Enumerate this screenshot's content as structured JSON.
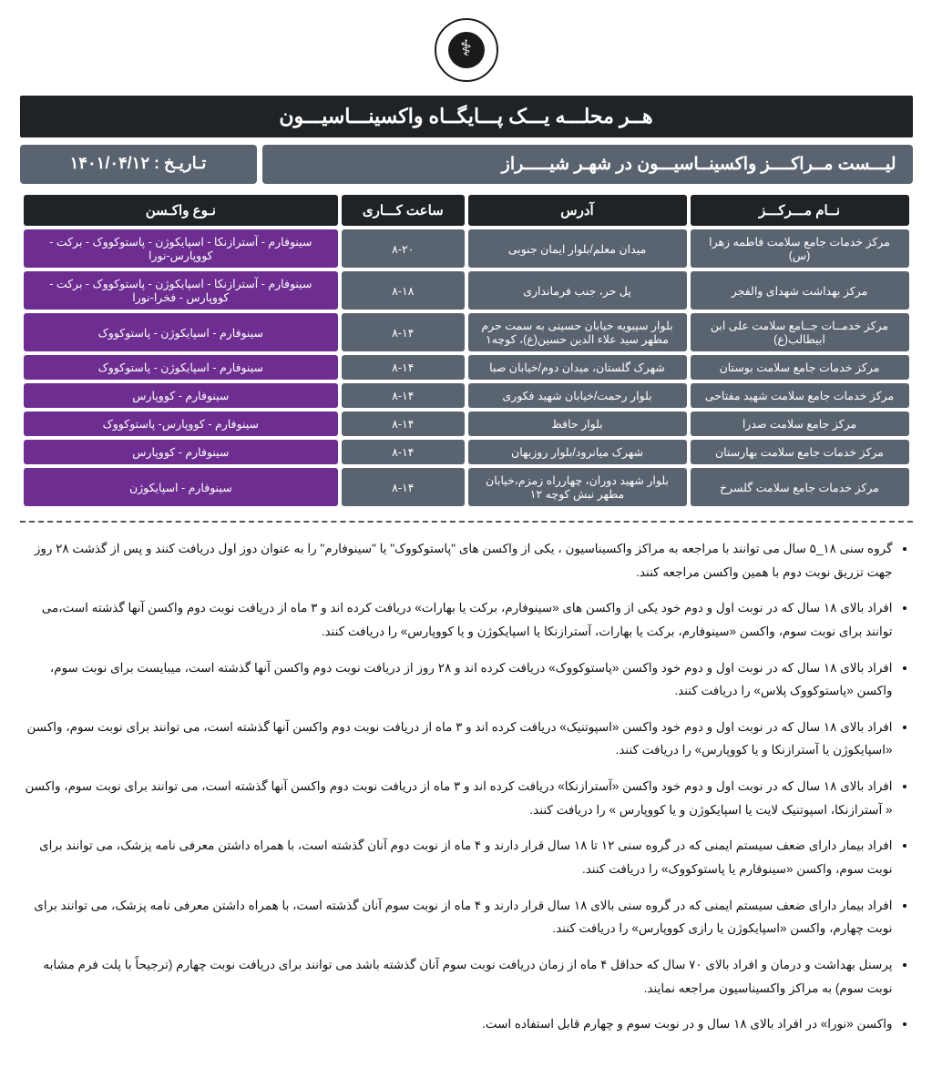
{
  "colors": {
    "header_bg": "#1f2326",
    "subheader_bg": "#5a6470",
    "row_gray": "#5a6470",
    "row_purple": "#6d2d91",
    "text_light": "#ffffff",
    "text_dark": "#111111",
    "page_bg": "#ffffff",
    "divider": "#555555"
  },
  "typography": {
    "title_size_pt": 22,
    "subtitle_size_pt": 19,
    "th_size_pt": 15,
    "td_size_pt": 12.5,
    "notes_size_pt": 13.5
  },
  "header": {
    "main_title": "هــر محلـــه یـــک پـــایگــاه واکسینـــاسیـــون",
    "sub_title": "لیـــست مــراکــــز واکسینــاسیـــون در شهـر شیـــــراز",
    "date_label": "تـاریـخ : ۱۴۰۱/۰۴/۱۲"
  },
  "table": {
    "columns": [
      "نــام مـــرکـــز",
      "آدرس",
      "ساعت کـــاری",
      "نـوع واکـسن"
    ],
    "rows": [
      {
        "name": "مرکز خدمات جامع سلامت فاطمه زهرا (س)",
        "addr": "میدان معلم/بلوار ایمان جنوبی",
        "hours": "۸-۲۰",
        "vac": "سینوفارم - آسترازنکا - اسپایکوژن - پاستوکووک - برکت - کووپارس-نورا"
      },
      {
        "name": "مرکز بهداشت شهدای والفجر",
        "addr": "پل حر، جنب فرمانداری",
        "hours": "۸-۱۸",
        "vac": "سینوفارم - آسترازنکا - اسپایکوژن - پاستوکووک - برکت - کووپارس - فخرا-نورا"
      },
      {
        "name": "مرکز خدمــات جــامع سلامت علی ابن ابیطالب(ع)",
        "addr": "بلوار سیبویه خیابان حسینی به سمت حرم مطهر سید علاء الدین حسین(ع)، کوچه۱",
        "hours": "۸-۱۴",
        "vac": "سینوفارم - اسپایکوژن - پاستوکووک"
      },
      {
        "name": "مرکز خدمات جامع سلامت بوستان",
        "addr": "شهرک گلستان، میدان دوم/خیابان صبا",
        "hours": "۸-۱۴",
        "vac": "سینوفارم - اسپایکوژن - پاستوکووک"
      },
      {
        "name": "مرکز خدمات جامع سلامت شهید مفتاحی",
        "addr": "بلوار رحمت/خیابان شهید فکوری",
        "hours": "۸-۱۴",
        "vac": "سینوفارم - کووپارس"
      },
      {
        "name": "مرکز  جامع سلامت صدرا",
        "addr": "بلوار حافظ",
        "hours": "۸-۱۴",
        "vac": "سینوفارم - کووپارس- پاستوکووک"
      },
      {
        "name": "مرکز خدمات جامع سلامت بهارستان",
        "addr": "شهرک میانرود/بلوار روزبهان",
        "hours": "۸-۱۴",
        "vac": "سینوفارم - کووپارس"
      },
      {
        "name": "مرکز خدمات جامع سلامت گلسرخ",
        "addr": "بلوار شهید دوران، چهارراه زمزم،خیابان مطهر نبش کوچه ۱۲",
        "hours": "۸-۱۴",
        "vac": "سینوفارم - اسپایکوژن"
      }
    ]
  },
  "notes": [
    "گروه سنی ۱۸_۵ سال می توانند  با مراجعه به مراکز واکسیناسیون ، یکی از واکسن های \"پاستوکووک\" یا \"سینوفارم\"  را به عنوان دوز اول دریافت کنند و پس از گذشت  ۲۸ روز جهت تزریق نوبت دوم با همین واکسن مراجعه کنند.",
    "افراد بالای ۱۸ سال که در نوبت اول و دوم خود یکی از واکسن های «سینوفارم، برکت یا بهارات» دریافت کرده اند و ۳ ماه از دریافت نوبت دوم واکسن آنها گذشته است،می توانند برای نوبت سوم، واکسن «سینوفارم، برکت یا بهارات، آسترازنکا یا اسپایکوژن و یا کووپارس» را دریافت کنند.",
    "افراد بالای ۱۸ سال که در نوبت اول و دوم خود واکسن «پاستوکووک» دریافت کرده اند و ۲۸ روز از دریافت نوبت دوم واکسن آنها گذشته است، میبایست برای نوبت سوم، واکسن «پاستوکووک پلاس» را دریافت کنند.",
    "افراد بالای ۱۸ سال که در نوبت اول و دوم خود واکسن «اسپوتنیک» دریافت کرده اند و ۳ ماه از دریافت نوبت دوم واکسن آنها گذشته است، می توانند برای نوبت سوم، واکسن «اسپایکوژن یا آسترازنکا و یا کووپارس» را دریافت کنند.",
    "افراد بالای ۱۸ سال که در نوبت اول و دوم خود واکسن «آسترازنکا» دریافت کرده اند و ۳ ماه از دریافت نوبت دوم واکسن آنها گذشته است، می توانند برای نوبت سوم، واکسن « آسترازنکا، اسپوتنیک لایت یا اسپایکوژن و یا کووپارس » را دریافت کنند.",
    "افراد بیمار دارای ضعف سیستم ایمنی که در گروه سنی ۱۲ تا ۱۸ سال قرار دارند و ۴ ماه از نوبت دوم آنان گذشته است، با همراه داشتن معرفی نامه پزشک، می توانند برای نوبت سوم، واکسن «سینوفارم یا پاستوکووک» را دریافت کنند.",
    "افراد بیمار دارای ضعف سیستم ایمنی که در گروه سنی بالای ۱۸ سال قرار دارند و ۴ ماه از نوبت سوم آنان گذشته است، با همراه داشتن معرفی نامه پزشک، می توانند برای نوبت چهارم، واکسن «اسپایکوژن یا رازی کووپارس» را دریافت کنند.",
    "پرسنل بهداشت و درمان و افراد بالای ۷۰ سال که حداقل ۴ ماه از زمان دریافت نوبت سوم آنان گذشته باشد می توانند برای دریافت نوبت چهارم (ترجیحاً با پلت فرم مشابه نوبت سوم) به مراکز واکسیناسیون مراجعه نمایند.",
    "واکسن «نورا»  در افراد بالای ۱۸ سال و در نوبت سوم و چهارم قابل استفاده است."
  ]
}
